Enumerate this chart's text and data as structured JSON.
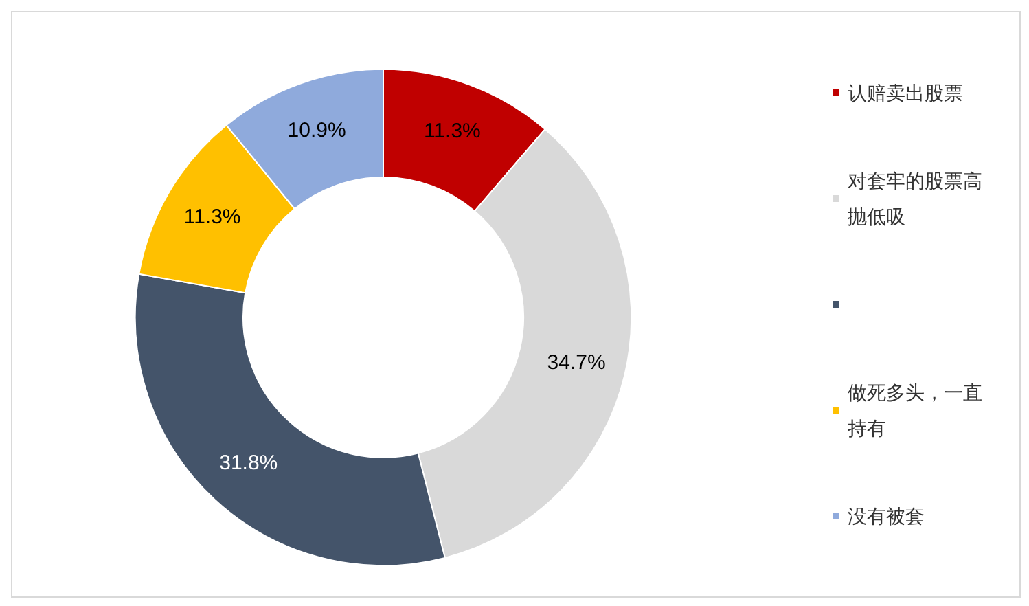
{
  "chart_data": {
    "type": "donut",
    "categories": [
      "认赔卖出股票",
      "对套牢的股票高抛低吸",
      null,
      "做死多头，一直持有",
      "没有被套"
    ],
    "values": [
      11.3,
      34.7,
      31.8,
      11.3,
      10.9
    ],
    "value_labels": [
      "11.3%",
      "34.7%",
      "31.8%",
      "11.3%",
      "10.9%"
    ],
    "colors": [
      "#c00000",
      "#d9d9d9",
      "#44546a",
      "#ffc000",
      "#8faadc"
    ],
    "legend": "right"
  }
}
